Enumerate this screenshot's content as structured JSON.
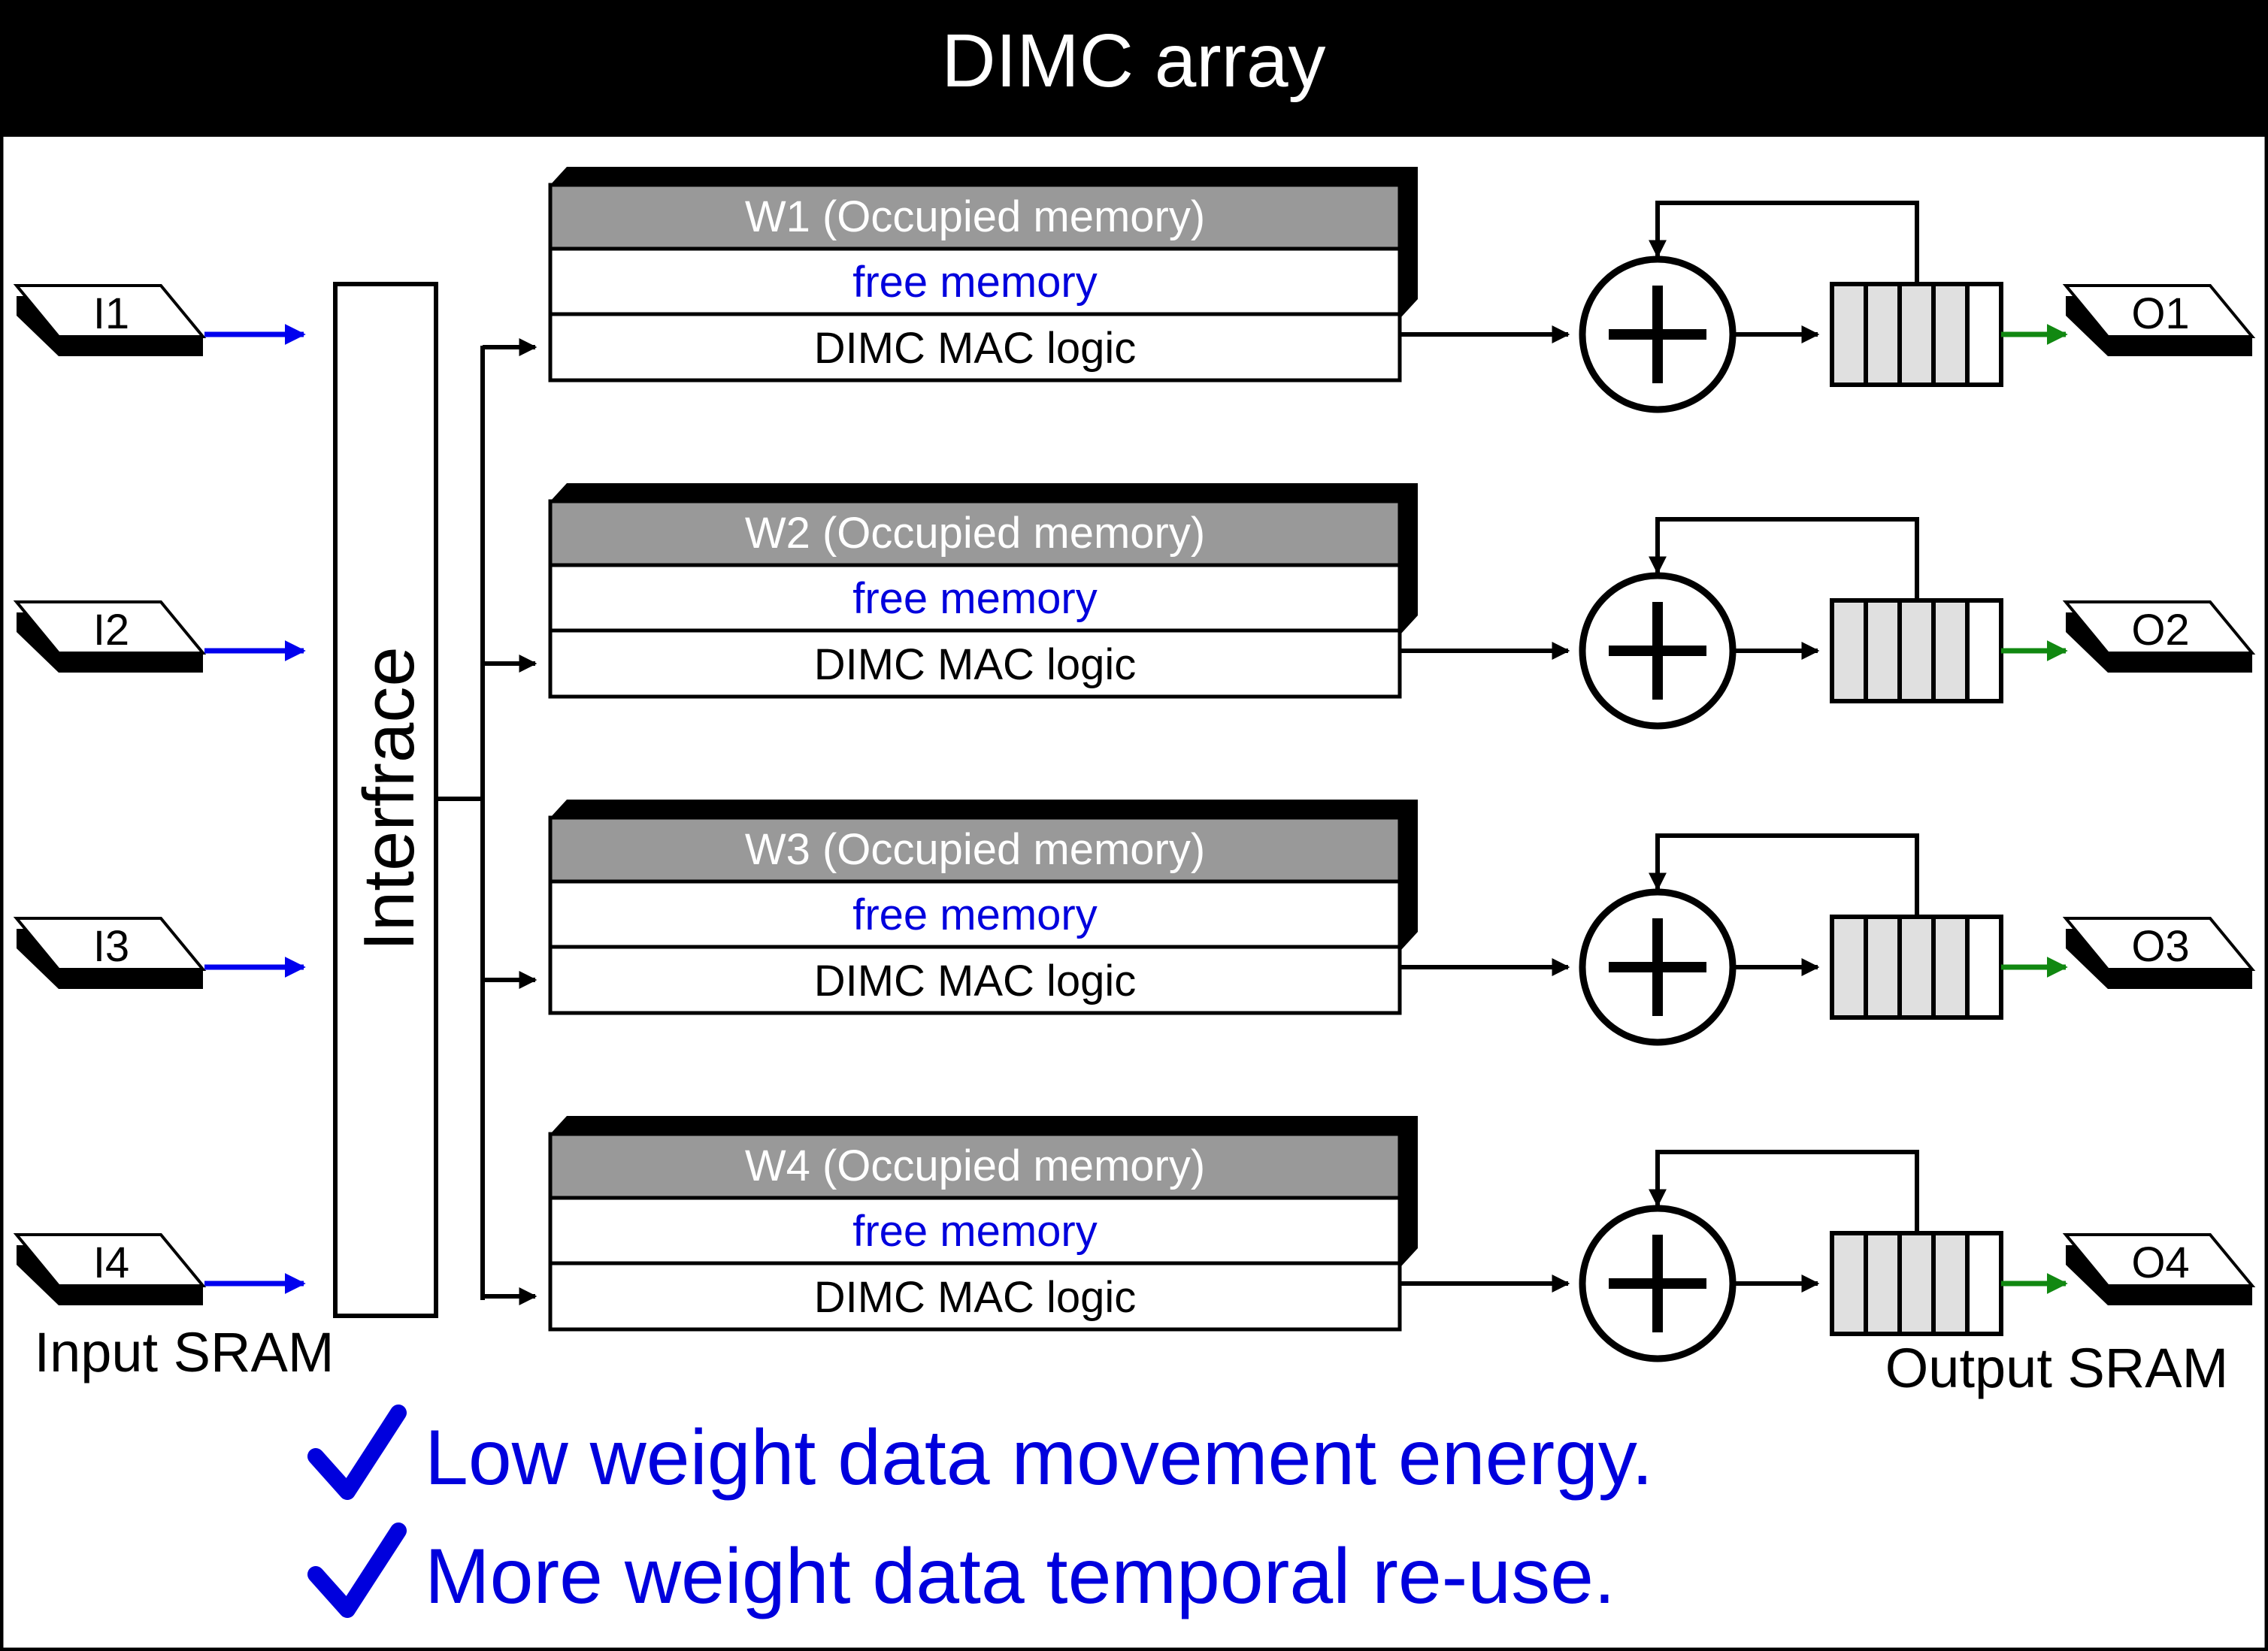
{
  "header": {
    "title": "DIMC array"
  },
  "interface_label": "Interfrace",
  "input_sram": {
    "label": "Input SRAM",
    "items": [
      "I1",
      "I2",
      "I3",
      "I4"
    ]
  },
  "output_sram": {
    "label": "Output SRAM",
    "items": [
      "O1",
      "O2",
      "O3",
      "O4"
    ]
  },
  "rows": [
    {
      "weight": "W1 (Occupied memory)",
      "free": "free memory",
      "mac": "DIMC MAC logic"
    },
    {
      "weight": "W2 (Occupied memory)",
      "free": "free memory",
      "mac": "DIMC MAC logic"
    },
    {
      "weight": "W3 (Occupied memory)",
      "free": "free memory",
      "mac": "DIMC MAC logic"
    },
    {
      "weight": "W4 (Occupied memory)",
      "free": "free memory",
      "mac": "DIMC MAC logic"
    }
  ],
  "benefits": [
    "Low weight data movement energy.",
    "More weight data temporal re-use."
  ],
  "colors": {
    "header_bg": "#000000",
    "header_text": "#ffffff",
    "occupied_bg": "#999999",
    "free_text": "#0000dd",
    "input_arrow": "#0000ee",
    "output_arrow": "#118811",
    "buffer_fill": "#e0e0e0",
    "benefit_text": "#0000dd"
  }
}
